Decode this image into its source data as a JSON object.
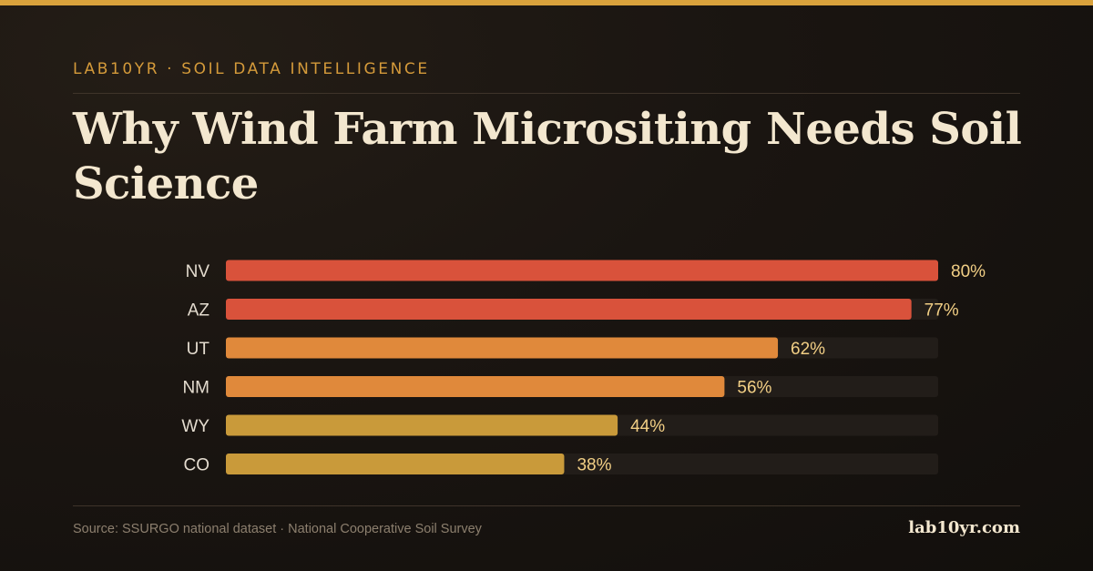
{
  "header": {
    "eyebrow": "LAB10YR · SOIL DATA INTELLIGENCE",
    "title": "Why Wind Farm Micrositing Needs Soil Science"
  },
  "footer": {
    "source": "Source: SSURGO national dataset · National Cooperative Soil Survey",
    "brand": "lab10yr.com"
  },
  "colors": {
    "accent": "#d9a23c",
    "track": "#221d19",
    "label": "#e4dccf",
    "value": "#f2cf85"
  },
  "chart_data": {
    "type": "bar",
    "orientation": "horizontal",
    "categories": [
      "NV",
      "AZ",
      "UT",
      "NM",
      "WY",
      "CO"
    ],
    "values": [
      80,
      77,
      62,
      56,
      44,
      38
    ],
    "value_labels": [
      "80%",
      "77%",
      "62%",
      "56%",
      "44%",
      "38%"
    ],
    "bar_colors": [
      "#d9523b",
      "#d9523b",
      "#e0893b",
      "#e0893b",
      "#c99a3a",
      "#c99a3a"
    ],
    "xlim": [
      0,
      80
    ],
    "grid": false,
    "legend": "none"
  }
}
